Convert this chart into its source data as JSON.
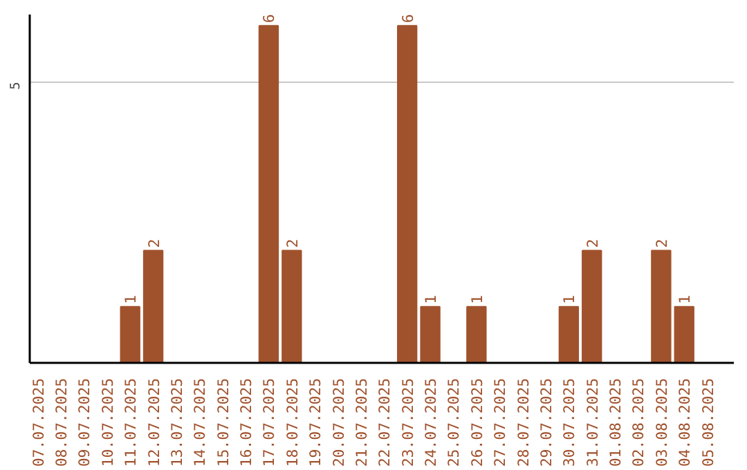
{
  "chart_data": {
    "type": "bar",
    "categories": [
      "07.07.2025",
      "08.07.2025",
      "09.07.2025",
      "10.07.2025",
      "11.07.2025",
      "12.07.2025",
      "13.07.2025",
      "14.07.2025",
      "15.07.2025",
      "16.07.2025",
      "17.07.2025",
      "18.07.2025",
      "19.07.2025",
      "20.07.2025",
      "21.07.2025",
      "22.07.2025",
      "23.07.2025",
      "24.07.2025",
      "25.07.2025",
      "26.07.2025",
      "27.07.2025",
      "28.07.2025",
      "29.07.2025",
      "30.07.2025",
      "31.07.2025",
      "01.08.2025",
      "02.08.2025",
      "03.08.2025",
      "04.08.2025",
      "05.08.2025"
    ],
    "values": [
      0,
      0,
      0,
      0,
      1,
      2,
      0,
      0,
      0,
      0,
      6,
      2,
      0,
      0,
      0,
      0,
      6,
      1,
      0,
      1,
      0,
      0,
      0,
      1,
      2,
      0,
      0,
      2,
      1,
      0
    ],
    "value_labels": [
      null,
      null,
      null,
      null,
      "1",
      "2",
      null,
      null,
      null,
      null,
      "6",
      "2",
      null,
      null,
      null,
      null,
      "6",
      "1",
      null,
      "1",
      null,
      null,
      null,
      "1",
      "2",
      null,
      null,
      "2",
      "1",
      null
    ],
    "color": "#a0522d",
    "ylim": [
      0,
      6.2
    ],
    "yticks": [
      5
    ],
    "grid": "y"
  }
}
